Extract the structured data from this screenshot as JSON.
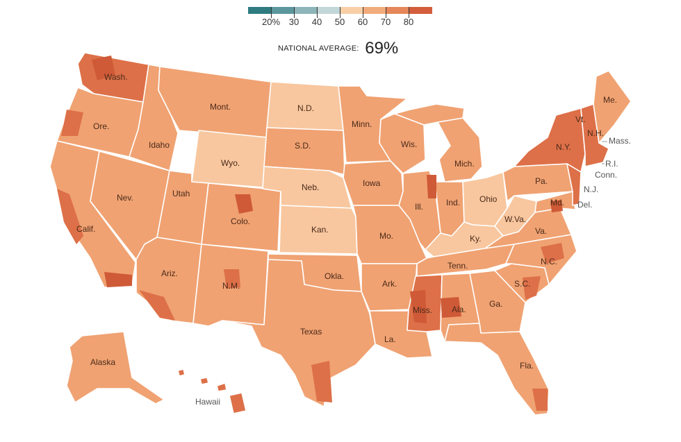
{
  "legend": {
    "labels": [
      "20%",
      "30",
      "40",
      "50",
      "60",
      "70",
      "80"
    ],
    "colors": [
      "#2f7c80",
      "#5b979c",
      "#8db4b8",
      "#c3d6d8",
      "#f8cfa7",
      "#f2ac7c",
      "#e5875a",
      "#d35d3c"
    ]
  },
  "national_average": {
    "label": "NATIONAL AVERAGE:",
    "value": "69%"
  },
  "map_colors": {
    "base": "#f0a272",
    "light": "#f8c79f",
    "dark": "#dd7048",
    "darker": "#cf5a37",
    "border": "#ffffff"
  },
  "states": [
    {
      "abbr": "Wash.",
      "shade": "dark"
    },
    {
      "abbr": "Ore.",
      "shade": "base"
    },
    {
      "abbr": "Calif.",
      "shade": "base"
    },
    {
      "abbr": "Idaho",
      "shade": "base"
    },
    {
      "abbr": "Nev.",
      "shade": "base"
    },
    {
      "abbr": "Mont.",
      "shade": "base"
    },
    {
      "abbr": "Wyo.",
      "shade": "light"
    },
    {
      "abbr": "Utah",
      "shade": "base"
    },
    {
      "abbr": "Colo.",
      "shade": "base"
    },
    {
      "abbr": "Ariz.",
      "shade": "base"
    },
    {
      "abbr": "N.M.",
      "shade": "base"
    },
    {
      "abbr": "N.D.",
      "shade": "light"
    },
    {
      "abbr": "S.D.",
      "shade": "base"
    },
    {
      "abbr": "Neb.",
      "shade": "light"
    },
    {
      "abbr": "Kan.",
      "shade": "light"
    },
    {
      "abbr": "Okla.",
      "shade": "base"
    },
    {
      "abbr": "Texas",
      "shade": "base"
    },
    {
      "abbr": "Minn.",
      "shade": "base"
    },
    {
      "abbr": "Iowa",
      "shade": "base"
    },
    {
      "abbr": "Mo.",
      "shade": "base"
    },
    {
      "abbr": "Ark.",
      "shade": "base"
    },
    {
      "abbr": "La.",
      "shade": "base"
    },
    {
      "abbr": "Wis.",
      "shade": "base"
    },
    {
      "abbr": "Ill.",
      "shade": "base"
    },
    {
      "abbr": "Mich.",
      "shade": "base"
    },
    {
      "abbr": "Ind.",
      "shade": "base"
    },
    {
      "abbr": "Ohio",
      "shade": "light"
    },
    {
      "abbr": "Ky.",
      "shade": "light"
    },
    {
      "abbr": "Tenn.",
      "shade": "base"
    },
    {
      "abbr": "Miss.",
      "shade": "dark"
    },
    {
      "abbr": "Ala.",
      "shade": "base"
    },
    {
      "abbr": "Ga.",
      "shade": "base"
    },
    {
      "abbr": "Fla.",
      "shade": "base"
    },
    {
      "abbr": "S.C.",
      "shade": "base"
    },
    {
      "abbr": "N.C.",
      "shade": "base"
    },
    {
      "abbr": "Va.",
      "shade": "base"
    },
    {
      "abbr": "W.Va.",
      "shade": "light"
    },
    {
      "abbr": "Pa.",
      "shade": "base"
    },
    {
      "abbr": "N.Y.",
      "shade": "dark"
    },
    {
      "abbr": "Vt.",
      "shade": "dark"
    },
    {
      "abbr": "N.H.",
      "shade": "dark"
    },
    {
      "abbr": "Me.",
      "shade": "base"
    },
    {
      "abbr": "Alaska",
      "shade": "base"
    },
    {
      "abbr": "Hawaii",
      "shade": "dark"
    }
  ],
  "outside_labels": [
    "Mass.",
    "R.I.",
    "Conn.",
    "N.J.",
    "Del.",
    "Md.",
    "Hawaii"
  ]
}
